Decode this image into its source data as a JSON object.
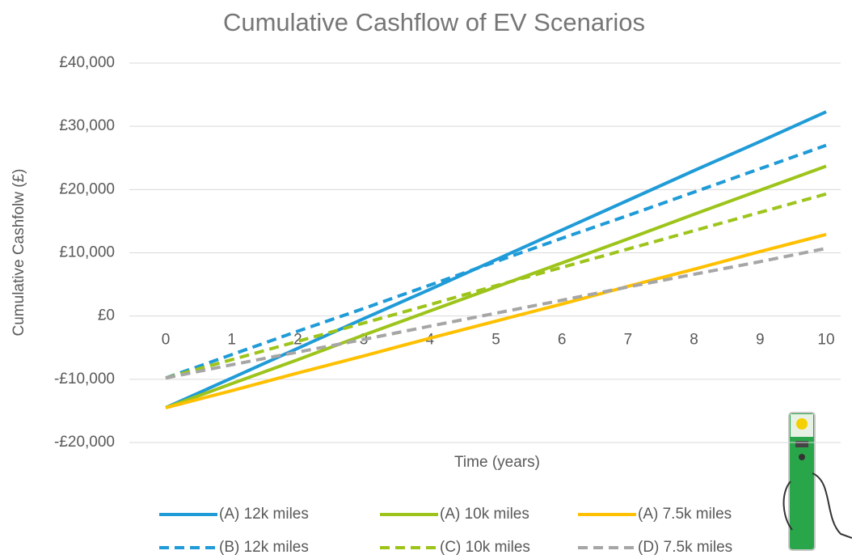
{
  "chart_data": {
    "type": "line",
    "title": "Cumulative Cashflow of EV Scenarios",
    "x_label": "Time (years)",
    "y_label": "Cumulative Cashfolw (£)",
    "x": [
      0,
      1,
      2,
      3,
      4,
      5,
      6,
      7,
      8,
      9,
      10
    ],
    "xlim": [
      0,
      10
    ],
    "xticks": [
      0,
      1,
      2,
      3,
      4,
      5,
      6,
      7,
      8,
      9,
      10
    ],
    "ylim": [
      -20000,
      40000
    ],
    "yticks": [
      {
        "value": -20000,
        "label": "-£20,000"
      },
      {
        "value": -10000,
        "label": "-£10,000"
      },
      {
        "value": 0,
        "label": "£0"
      },
      {
        "value": 10000,
        "label": "£10,000"
      },
      {
        "value": 20000,
        "label": "£20,000"
      },
      {
        "value": 30000,
        "label": "£30,000"
      },
      {
        "value": 40000,
        "label": "£40,000"
      }
    ],
    "grid": true,
    "legend": "bottom",
    "series": [
      {
        "name": "(A) 12k miles",
        "color": "#1f9bd7",
        "line_style": "solid",
        "values": [
          -14500,
          -9800,
          -5100,
          -400,
          4200,
          8900,
          13600,
          18300,
          23000,
          27600,
          32300
        ]
      },
      {
        "name": "(A) 10k miles",
        "color": "#9dc41a",
        "line_style": "solid",
        "values": [
          -14500,
          -10700,
          -6900,
          -3000,
          800,
          4600,
          8400,
          12200,
          16100,
          19900,
          23700
        ]
      },
      {
        "name": "(A) 7.5k miles",
        "color": "#ffc000",
        "line_style": "solid",
        "values": [
          -14500,
          -11800,
          -9000,
          -6300,
          -3500,
          -800,
          1900,
          4700,
          7400,
          10200,
          12900
        ]
      },
      {
        "name": "(B) 12k miles",
        "color": "#1f9bd7",
        "line_style": "dashed",
        "values": [
          -9800,
          -6100,
          -2400,
          1200,
          4900,
          8600,
          12300,
          15900,
          19600,
          23300,
          27000
        ]
      },
      {
        "name": "(C) 10k miles",
        "color": "#9dc41a",
        "line_style": "dashed",
        "values": [
          -9800,
          -6900,
          -4000,
          -1100,
          1800,
          4800,
          7700,
          10600,
          13500,
          16400,
          19300
        ]
      },
      {
        "name": "(D) 7.5k miles",
        "color": "#a6a6a6",
        "line_style": "dashed",
        "values": [
          -9800,
          -7700,
          -5700,
          -3700,
          -1600,
          450,
          2500,
          4600,
          6600,
          8600,
          10700
        ]
      }
    ]
  }
}
